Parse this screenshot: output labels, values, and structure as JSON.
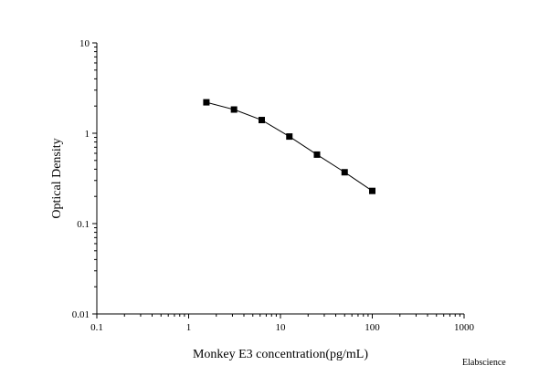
{
  "chart_data": {
    "type": "scatter",
    "xscale": "log",
    "yscale": "log",
    "xlim": [
      0.1,
      1000
    ],
    "ylim": [
      0.01,
      10
    ],
    "xlabel": "Monkey E3 concentration(pg/mL)",
    "ylabel": "Optical Density",
    "xticks": [
      "0.1",
      "1",
      "10",
      "100",
      "1000"
    ],
    "yticks": [
      "0.01",
      "0.1",
      "1",
      "10"
    ],
    "grid": false,
    "legend": "none",
    "line_connected": true,
    "marker": "square",
    "series": [
      {
        "x": [
          1.56,
          3.12,
          6.25,
          12.5,
          25,
          50,
          100
        ],
        "y": [
          2.2,
          1.83,
          1.4,
          0.92,
          0.58,
          0.37,
          0.23
        ]
      }
    ],
    "watermark": "Elabscience"
  },
  "colors": {
    "marker": "#000000",
    "line": "#000000",
    "axis": "#000000"
  }
}
